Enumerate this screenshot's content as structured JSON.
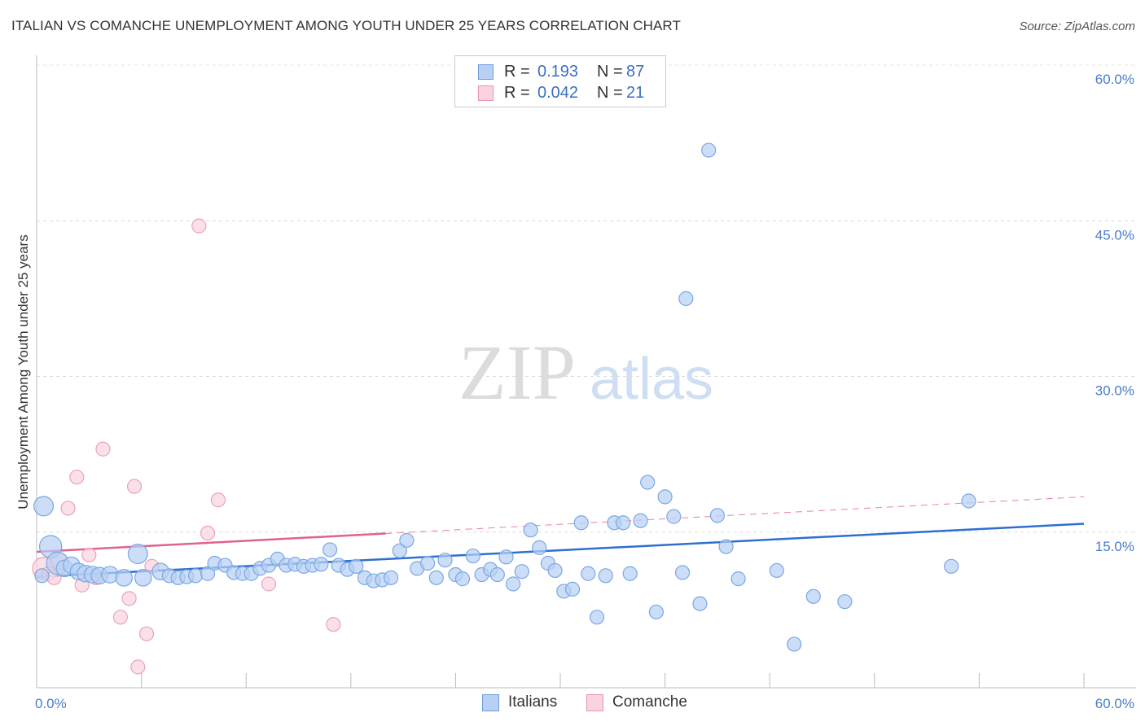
{
  "header": {
    "title": "ITALIAN VS COMANCHE UNEMPLOYMENT AMONG YOUTH UNDER 25 YEARS CORRELATION CHART",
    "source": "Source: ZipAtlas.com"
  },
  "watermark": {
    "zip": "ZIP",
    "atlas": "atlas"
  },
  "legend": {
    "rows": [
      {
        "r_label": "R =",
        "r_value": "0.193",
        "n_label": "N =",
        "n_value": "87",
        "color": "#a9c8f0",
        "border": "#6f9ee0"
      },
      {
        "r_label": "R =",
        "r_value": "0.042",
        "n_label": "N =",
        "n_value": "21",
        "color": "#f7c5d4",
        "border": "#e895b0"
      }
    ]
  },
  "bottom_legend": {
    "items": [
      {
        "label": "Italians",
        "color": "#a9c8f0",
        "border": "#6f9ee0"
      },
      {
        "label": "Comanche",
        "color": "#f7c5d4",
        "border": "#e895b0"
      }
    ]
  },
  "chart_data": {
    "type": "scatter",
    "title": "ITALIAN VS COMANCHE UNEMPLOYMENT AMONG YOUTH UNDER 25 YEARS CORRELATION CHART",
    "xlabel": "",
    "ylabel": "Unemployment Among Youth under 25 years",
    "xlim": [
      0,
      60
    ],
    "ylim": [
      0,
      60
    ],
    "x_tick_labels": [
      "0.0%",
      "60.0%"
    ],
    "y_tick_labels": [
      "15.0%",
      "30.0%",
      "45.0%",
      "60.0%"
    ],
    "y_ticks": [
      15,
      30,
      45,
      60
    ],
    "grid": true,
    "legend_position": "top-center",
    "series": [
      {
        "name": "Italians",
        "color": "#7ba7e3",
        "fill": "#b7d0f3",
        "trend": {
          "x": [
            0,
            60
          ],
          "y": [
            10.7,
            15.8
          ],
          "color": "#2e6fd1",
          "style": "solid"
        },
        "points": [
          [
            0.4,
            17.5
          ],
          [
            0.8,
            13.6
          ],
          [
            1.2,
            12.0
          ],
          [
            1.6,
            11.5
          ],
          [
            2.0,
            11.8
          ],
          [
            2.4,
            11.2
          ],
          [
            2.8,
            11.0
          ],
          [
            3.2,
            10.9
          ],
          [
            3.6,
            10.8
          ],
          [
            4.2,
            10.9
          ],
          [
            5.0,
            10.6
          ],
          [
            5.8,
            12.9
          ],
          [
            6.1,
            10.6
          ],
          [
            7.1,
            11.2
          ],
          [
            7.6,
            10.8
          ],
          [
            8.1,
            10.6
          ],
          [
            8.6,
            10.7
          ],
          [
            9.1,
            10.8
          ],
          [
            9.8,
            11.0
          ],
          [
            10.2,
            12.0
          ],
          [
            10.8,
            11.8
          ],
          [
            11.3,
            11.1
          ],
          [
            11.8,
            11.0
          ],
          [
            12.3,
            11.0
          ],
          [
            12.8,
            11.5
          ],
          [
            13.3,
            11.8
          ],
          [
            13.8,
            12.4
          ],
          [
            14.3,
            11.8
          ],
          [
            14.8,
            11.9
          ],
          [
            15.3,
            11.7
          ],
          [
            15.8,
            11.8
          ],
          [
            16.3,
            11.9
          ],
          [
            16.8,
            13.3
          ],
          [
            17.3,
            11.8
          ],
          [
            17.8,
            11.4
          ],
          [
            18.3,
            11.7
          ],
          [
            18.8,
            10.6
          ],
          [
            19.3,
            10.3
          ],
          [
            19.8,
            10.4
          ],
          [
            20.3,
            10.6
          ],
          [
            20.8,
            13.2
          ],
          [
            21.2,
            14.2
          ],
          [
            21.8,
            11.5
          ],
          [
            22.4,
            12.0
          ],
          [
            22.9,
            10.6
          ],
          [
            23.4,
            12.3
          ],
          [
            24.0,
            10.9
          ],
          [
            24.4,
            10.5
          ],
          [
            25.0,
            12.7
          ],
          [
            25.5,
            10.9
          ],
          [
            26.0,
            11.4
          ],
          [
            26.4,
            10.9
          ],
          [
            26.9,
            12.6
          ],
          [
            27.3,
            10.0
          ],
          [
            27.8,
            11.2
          ],
          [
            28.3,
            15.2
          ],
          [
            28.8,
            13.5
          ],
          [
            29.3,
            12.0
          ],
          [
            29.7,
            11.3
          ],
          [
            30.2,
            9.3
          ],
          [
            30.7,
            9.5
          ],
          [
            31.2,
            15.9
          ],
          [
            31.6,
            11.0
          ],
          [
            32.1,
            6.8
          ],
          [
            32.6,
            10.8
          ],
          [
            33.1,
            15.9
          ],
          [
            33.6,
            15.9
          ],
          [
            34.0,
            11.0
          ],
          [
            34.6,
            16.1
          ],
          [
            35.0,
            19.8
          ],
          [
            35.5,
            7.3
          ],
          [
            36.0,
            18.4
          ],
          [
            36.5,
            16.5
          ],
          [
            37.0,
            11.1
          ],
          [
            37.2,
            37.5
          ],
          [
            38.0,
            8.1
          ],
          [
            38.5,
            51.8
          ],
          [
            39.0,
            16.6
          ],
          [
            39.5,
            13.6
          ],
          [
            40.2,
            10.5
          ],
          [
            42.4,
            11.3
          ],
          [
            43.4,
            4.2
          ],
          [
            44.5,
            8.8
          ],
          [
            46.3,
            8.3
          ],
          [
            52.4,
            11.7
          ],
          [
            53.4,
            18.0
          ],
          [
            0.3,
            10.8
          ]
        ],
        "sizes": [
          14,
          16,
          16,
          12,
          12,
          12,
          12,
          12,
          12,
          12,
          12,
          14,
          12,
          12,
          10,
          10,
          10,
          10,
          10,
          10,
          10,
          10,
          10,
          10,
          10,
          10,
          10,
          10,
          10,
          10,
          10,
          10,
          10,
          10,
          10,
          10,
          10,
          10,
          10,
          10,
          10,
          10,
          10,
          10,
          10,
          10,
          10,
          10,
          10,
          10,
          10,
          10,
          10,
          10,
          10,
          10,
          10,
          10,
          10,
          10,
          10,
          10,
          10,
          10,
          10,
          10,
          10,
          10,
          10,
          10,
          10,
          10,
          10,
          10,
          10,
          10,
          10,
          10,
          10,
          10,
          10,
          10,
          10,
          10,
          10,
          10,
          10
        ]
      },
      {
        "name": "Comanche",
        "color": "#e9a3bb",
        "fill": "#f9d3df",
        "trend": {
          "x": [
            0,
            60
          ],
          "y": [
            13.1,
            18.4
          ],
          "color": "#e0628e",
          "style": "solid-then-dashed",
          "solid_until_x": 20
        },
        "points": [
          [
            0.4,
            11.5
          ],
          [
            0.7,
            11.0
          ],
          [
            1.0,
            10.6
          ],
          [
            1.3,
            12.2
          ],
          [
            1.8,
            17.3
          ],
          [
            2.3,
            20.3
          ],
          [
            2.6,
            9.9
          ],
          [
            3.0,
            12.8
          ],
          [
            3.4,
            10.6
          ],
          [
            3.8,
            23.0
          ],
          [
            4.8,
            6.8
          ],
          [
            5.3,
            8.6
          ],
          [
            5.6,
            19.4
          ],
          [
            5.8,
            2.0
          ],
          [
            6.3,
            5.2
          ],
          [
            6.6,
            11.7
          ],
          [
            9.3,
            44.5
          ],
          [
            9.8,
            14.9
          ],
          [
            10.4,
            18.1
          ],
          [
            13.3,
            10.0
          ],
          [
            17.0,
            6.1
          ]
        ],
        "sizes": [
          16,
          10,
          10,
          12,
          10,
          10,
          10,
          10,
          10,
          10,
          10,
          10,
          10,
          10,
          10,
          10,
          10,
          10,
          10,
          10,
          10
        ]
      }
    ]
  }
}
